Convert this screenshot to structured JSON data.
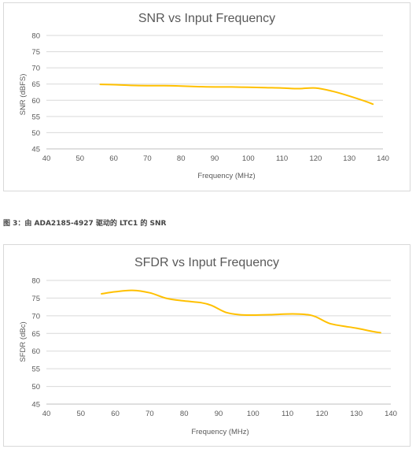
{
  "chart_data": [
    {
      "type": "line",
      "title": "SNR vs Input Frequency",
      "xlabel": "Frequency (MHz)",
      "ylabel": "SNR (dBFS)",
      "xlim": [
        40,
        140
      ],
      "ylim": [
        45,
        80
      ],
      "xticks": [
        40,
        50,
        60,
        70,
        80,
        90,
        100,
        110,
        120,
        130,
        140
      ],
      "yticks": [
        45,
        50,
        55,
        60,
        65,
        70,
        75,
        80
      ],
      "grid": true,
      "series": [
        {
          "color": "#FFC000",
          "x": [
            56,
            60,
            65,
            70,
            75,
            80,
            85,
            90,
            95,
            100,
            105,
            110,
            115,
            120,
            125,
            130,
            135,
            137
          ],
          "y": [
            64.9,
            64.8,
            64.6,
            64.5,
            64.5,
            64.4,
            64.2,
            64.1,
            64.1,
            64.0,
            63.9,
            63.8,
            63.6,
            63.8,
            62.8,
            61.3,
            59.6,
            58.8
          ]
        }
      ]
    },
    {
      "type": "line",
      "title": "SFDR vs Input Frequency",
      "xlabel": "Frequency (MHz)",
      "ylabel": "SFDR (dBc)",
      "xlim": [
        40,
        140
      ],
      "ylim": [
        45,
        80
      ],
      "xticks": [
        40,
        50,
        60,
        70,
        80,
        90,
        100,
        110,
        120,
        130,
        140
      ],
      "yticks": [
        45,
        50,
        55,
        60,
        65,
        70,
        75,
        80
      ],
      "grid": true,
      "series": [
        {
          "color": "#FFC000",
          "x": [
            56,
            60,
            65,
            70,
            75,
            80,
            85,
            88,
            92,
            96,
            100,
            105,
            110,
            115,
            118,
            122,
            126,
            130,
            135,
            137
          ],
          "y": [
            76.2,
            76.8,
            77.2,
            76.5,
            74.9,
            74.2,
            73.7,
            72.9,
            71.0,
            70.3,
            70.2,
            70.3,
            70.5,
            70.4,
            69.8,
            67.9,
            67.1,
            66.5,
            65.5,
            65.2
          ]
        }
      ]
    }
  ],
  "caption": "图 3：由 ADA2185-4927 驱动的 LTC1 的 SNR"
}
